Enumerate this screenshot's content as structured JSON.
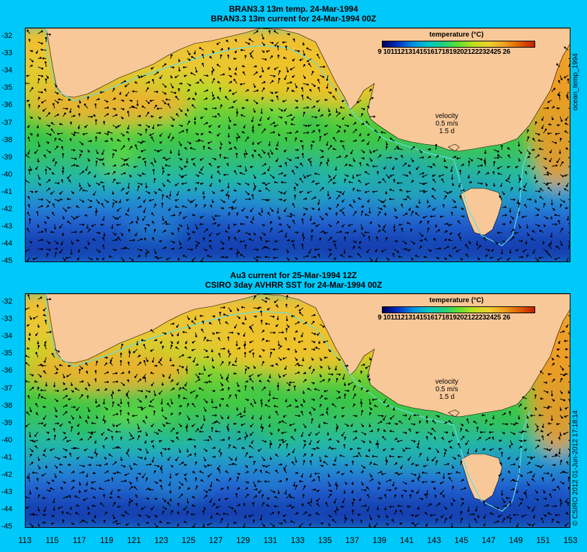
{
  "panels": [
    {
      "title_line1": "BRAN3.3 13m temp. 24-Mar-1994",
      "title_line2": "BRAN3.3 13m current for 24-Mar-1994 00Z",
      "legend_title": "temperature (°C)",
      "legend_labels": "9 10111213141516171819202122232425 26",
      "velocity_label": "velocity",
      "velocity_speed": "0.5 m/s",
      "velocity_scale": "1.5 d",
      "side_label": "ocean_temp_1994"
    },
    {
      "title_line1": "Au3 current for 25-Mar-1994 12Z",
      "title_line2": "CSIRO 3day AVHRR SST for 24-Mar-1994 00Z",
      "legend_title": "temperature (°C)",
      "legend_labels": "9 10111213141516171819202122232425 26",
      "velocity_label": "velocity",
      "velocity_speed": "0.5 m/s",
      "velocity_scale": "1.5 d",
      "side_label": "© CSIRO 2012  01-Jun-2012 17:18:14"
    }
  ],
  "y_ticks": [
    "-32",
    "-33",
    "-34",
    "-35",
    "-36",
    "-37",
    "-38",
    "-39",
    "-40",
    "-41",
    "-42",
    "-43",
    "-44",
    "-45"
  ],
  "x_ticks": [
    "113",
    "115",
    "117",
    "119",
    "121",
    "123",
    "125",
    "127",
    "129",
    "131",
    "133",
    "135",
    "137",
    "139",
    "141",
    "143",
    "145",
    "147",
    "149",
    "151",
    "153"
  ],
  "colors": {
    "background": "#00c8f8",
    "land": "#f8c898",
    "shelf_line": "#60e0e0",
    "arrow": "#000000"
  }
}
